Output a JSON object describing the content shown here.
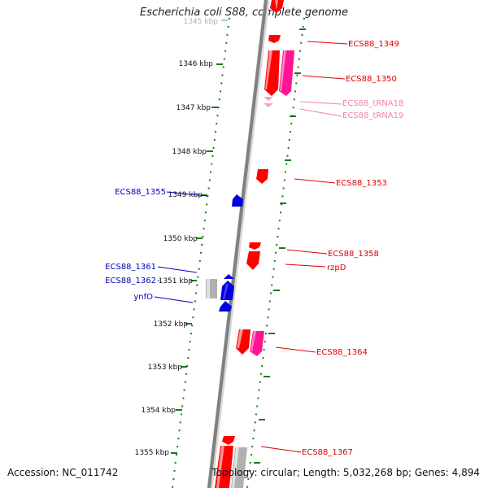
{
  "title": "Escherichia coli S88, complete genome",
  "accession": "Accession: NC_011742",
  "topology": "Topology: circular; Length: 5,032,268 bp; Genes: 4,894",
  "ruler": [
    {
      "label": "1345 kbp",
      "faded": true
    },
    {
      "label": "1346 kbp"
    },
    {
      "label": "1347 kbp"
    },
    {
      "label": "1348 kbp"
    },
    {
      "label": "1349 kbp"
    },
    {
      "label": "1350 kbp"
    },
    {
      "label": "1351 kbp"
    },
    {
      "label": "1352 kbp"
    },
    {
      "label": "1353 kbp"
    },
    {
      "label": "1354 kbp"
    },
    {
      "label": "1355 kbp"
    }
  ],
  "gene_labels": [
    {
      "text": "ECS88_1349",
      "side": "right",
      "color": "#e00000"
    },
    {
      "text": "ECS88_1350",
      "side": "right",
      "color": "#e00000"
    },
    {
      "text": "ECS88_tRNA18",
      "side": "right",
      "color": "#f080b0"
    },
    {
      "text": "ECS88_tRNA19",
      "side": "right",
      "color": "#f080b0"
    },
    {
      "text": "ECS88_1353",
      "side": "right",
      "color": "#e00000"
    },
    {
      "text": "ECS88_1355",
      "side": "left",
      "color": "#0000c0"
    },
    {
      "text": "ECS88_1358",
      "side": "right",
      "color": "#e00000"
    },
    {
      "text": "rzpD",
      "side": "right",
      "color": "#e00000"
    },
    {
      "text": "ECS88_1361",
      "side": "left",
      "color": "#0000c0"
    },
    {
      "text": "ECS88_1362",
      "side": "left",
      "color": "#0000c0"
    },
    {
      "text": "ynfO",
      "side": "left",
      "color": "#0000c0"
    },
    {
      "text": "ECS88_1364",
      "side": "right",
      "color": "#e00000"
    },
    {
      "text": "ECS88_1367",
      "side": "right",
      "color": "#e00000"
    }
  ],
  "colors": {
    "forward_gene": "#ff0000",
    "reverse_gene": "#0000e0",
    "rna_gene": "#ff1493",
    "trna": "#ffa0c0",
    "pseudo": "#b0b0b0",
    "backbone": "#808080",
    "ticks": "#1a7a1a"
  }
}
